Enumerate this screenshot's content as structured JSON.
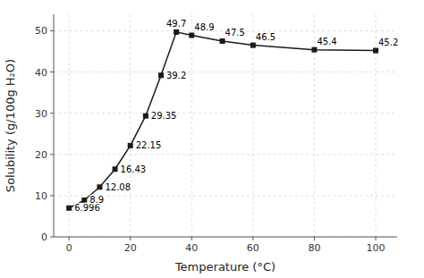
{
  "chart_data": {
    "type": "line",
    "x": [
      0,
      5,
      10,
      15,
      20,
      25,
      30,
      35,
      40,
      50,
      60,
      80,
      100
    ],
    "values": [
      6.996,
      8.9,
      12.08,
      16.43,
      22.15,
      29.35,
      39.2,
      49.7,
      48.9,
      47.5,
      46.5,
      45.4,
      45.2
    ],
    "xlabel": "Temperature (°C)",
    "ylabel": "Solubility (g/100g H₂O)",
    "xlim": [
      -5,
      107
    ],
    "ylim": [
      0,
      54
    ],
    "xticks": [
      0,
      20,
      40,
      60,
      80,
      100
    ],
    "yticks": [
      0,
      10,
      20,
      30,
      40,
      50
    ],
    "color": "#1a1a1a",
    "marker": "square",
    "grid": true,
    "data_labels": true
  }
}
